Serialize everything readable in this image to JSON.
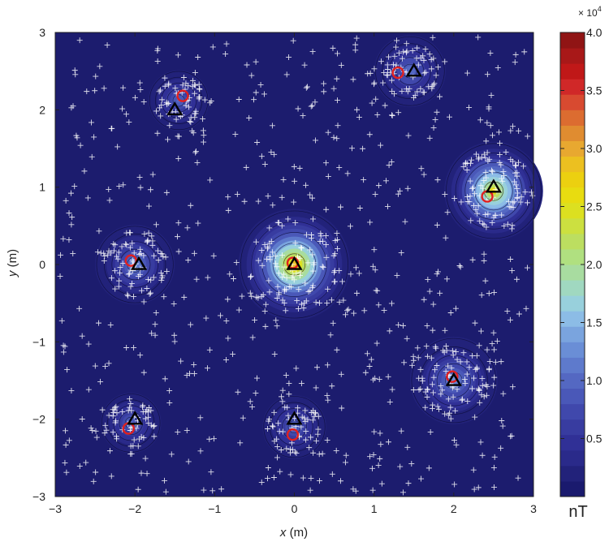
{
  "chart_data": {
    "type": "heatmap",
    "title": "",
    "xlabel": {
      "var": "x",
      "unit": " (m)"
    },
    "ylabel": {
      "var": "y",
      "unit": " (m)"
    },
    "xlim": [
      -3,
      3
    ],
    "ylim": [
      -3,
      3
    ],
    "x_ticks": [
      "−3",
      "−2",
      "−1",
      "0",
      "1",
      "2",
      "3"
    ],
    "y_ticks": [
      "−3",
      "−2",
      "−1",
      "0",
      "1",
      "2",
      "3"
    ],
    "colorbar": {
      "range": [
        0,
        40000
      ],
      "tick_labels": [
        "0.5",
        "1.0",
        "1.5",
        "2.0",
        "2.5",
        "3.0",
        "3.5",
        "4.0"
      ],
      "tick_values": [
        0.5,
        1.0,
        1.5,
        2.0,
        2.5,
        3.0,
        3.5,
        4.0
      ],
      "multiplier_base": "× 10",
      "multiplier_exp": "4",
      "unit": "nT",
      "colors": [
        "#1a1a6e",
        "#22227a",
        "#2a2a8a",
        "#303096",
        "#383ca0",
        "#4048ac",
        "#4a58b8",
        "#5468c2",
        "#5e7acc",
        "#6a8ed6",
        "#7aa4de",
        "#8cbce6",
        "#98d0dc",
        "#a0d8c0",
        "#a8dca0",
        "#b0e080",
        "#bcde60",
        "#cce040",
        "#dce020",
        "#e8dc10",
        "#ecd010",
        "#ecc020",
        "#e8a830",
        "#e08c30",
        "#dc6c30",
        "#d84a30",
        "#d02828",
        "#c01818",
        "#a81818",
        "#901414"
      ]
    },
    "sources": [
      {
        "x": 0.0,
        "y": 0.0,
        "peak": 3.0,
        "radius": 0.7
      },
      {
        "x": 2.5,
        "y": 0.95,
        "peak": 2.7,
        "radius": 0.62
      },
      {
        "x": -2.0,
        "y": 0.0,
        "peak": 1.25,
        "radius": 0.5
      },
      {
        "x": 2.0,
        "y": -1.5,
        "peak": 1.3,
        "radius": 0.55
      },
      {
        "x": 1.45,
        "y": 2.5,
        "peak": 1.05,
        "radius": 0.45
      },
      {
        "x": -1.45,
        "y": 2.12,
        "peak": 1.0,
        "radius": 0.38
      },
      {
        "x": -2.05,
        "y": -2.05,
        "peak": 1.0,
        "radius": 0.38
      },
      {
        "x": 0.0,
        "y": -2.1,
        "peak": 1.0,
        "radius": 0.4
      }
    ],
    "true_positions": [
      {
        "x": 0.0,
        "y": 0.0
      },
      {
        "x": 2.5,
        "y": 1.0
      },
      {
        "x": -1.95,
        "y": 0.0
      },
      {
        "x": 2.0,
        "y": -1.5
      },
      {
        "x": 1.5,
        "y": 2.5
      },
      {
        "x": -1.5,
        "y": 2.0
      },
      {
        "x": -2.0,
        "y": -2.0
      },
      {
        "x": 0.0,
        "y": -2.0
      }
    ],
    "estimated_positions": [
      {
        "x": -0.02,
        "y": 0.02
      },
      {
        "x": 2.42,
        "y": 0.88
      },
      {
        "x": -2.05,
        "y": 0.05
      },
      {
        "x": 1.98,
        "y": -1.45
      },
      {
        "x": 1.3,
        "y": 2.48
      },
      {
        "x": -1.4,
        "y": 2.18
      },
      {
        "x": -2.08,
        "y": -2.12
      },
      {
        "x": -0.02,
        "y": -2.2
      }
    ],
    "grid": false,
    "legend": "none"
  }
}
